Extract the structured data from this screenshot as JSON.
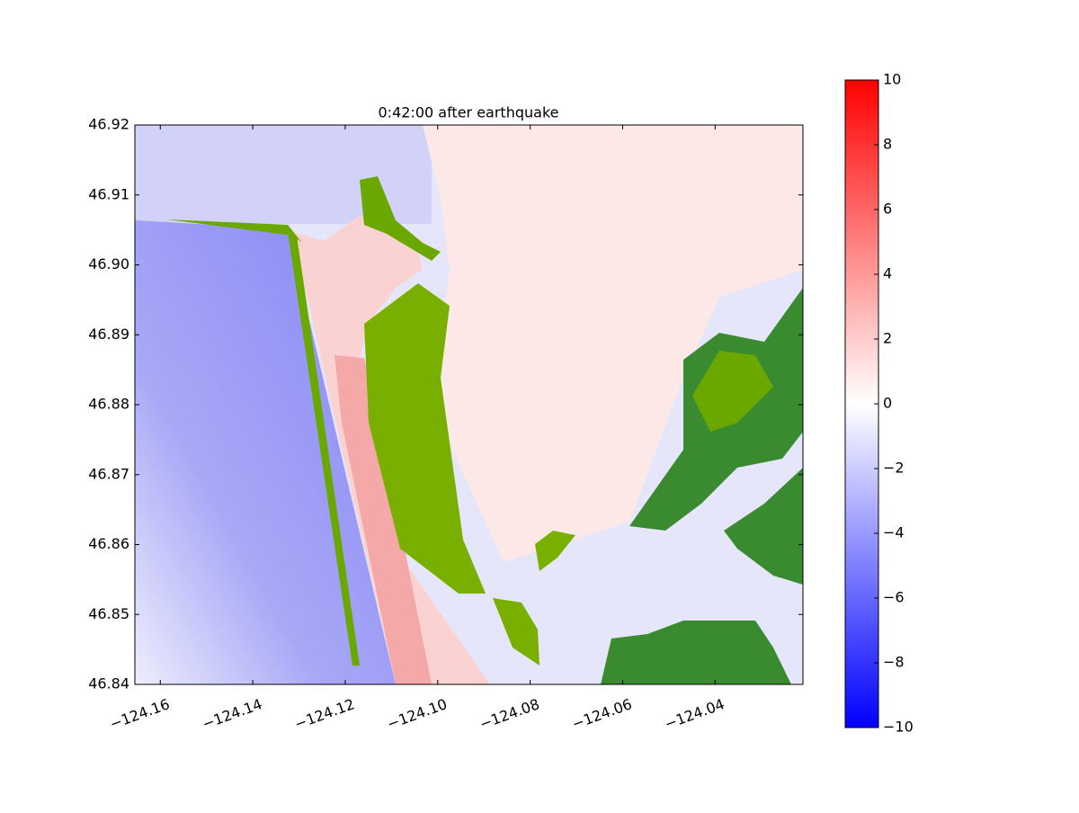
{
  "chart_data": {
    "type": "heatmap",
    "title": "0:42:00 after earthquake",
    "xlim": [
      -124.1655,
      -124.021
    ],
    "ylim": [
      46.84,
      46.92
    ],
    "xticks": [
      {
        "value": -124.16,
        "label": "−124.16"
      },
      {
        "value": -124.14,
        "label": "−124.14"
      },
      {
        "value": -124.12,
        "label": "−124.12"
      },
      {
        "value": -124.1,
        "label": "−124.10"
      },
      {
        "value": -124.08,
        "label": "−124.08"
      },
      {
        "value": -124.06,
        "label": "−124.06"
      },
      {
        "value": -124.04,
        "label": "−124.04"
      }
    ],
    "yticks": [
      46.84,
      {
        "value": 46.85,
        "label": "46.85"
      },
      {
        "value": 46.86,
        "label": "46.86"
      },
      {
        "value": 46.87,
        "label": "46.87"
      },
      {
        "value": 46.88,
        "label": "46.88"
      },
      {
        "value": 46.89,
        "label": "46.89"
      },
      {
        "value": 46.9,
        "label": "46.90"
      },
      {
        "value": 46.91,
        "label": "46.91"
      },
      46.92
    ],
    "colorbar": {
      "lim": [
        -10,
        10
      ],
      "colors": [
        "#0000ff",
        "#ffffff",
        "#ff0000"
      ],
      "ticks": [
        {
          "value": -10,
          "label": "−10"
        },
        {
          "value": -8,
          "label": "−8"
        },
        {
          "value": -6,
          "label": "−6"
        },
        {
          "value": -4,
          "label": "−4"
        },
        {
          "value": -2,
          "label": "−2"
        },
        0,
        2,
        4,
        6,
        8,
        10
      ]
    }
  }
}
